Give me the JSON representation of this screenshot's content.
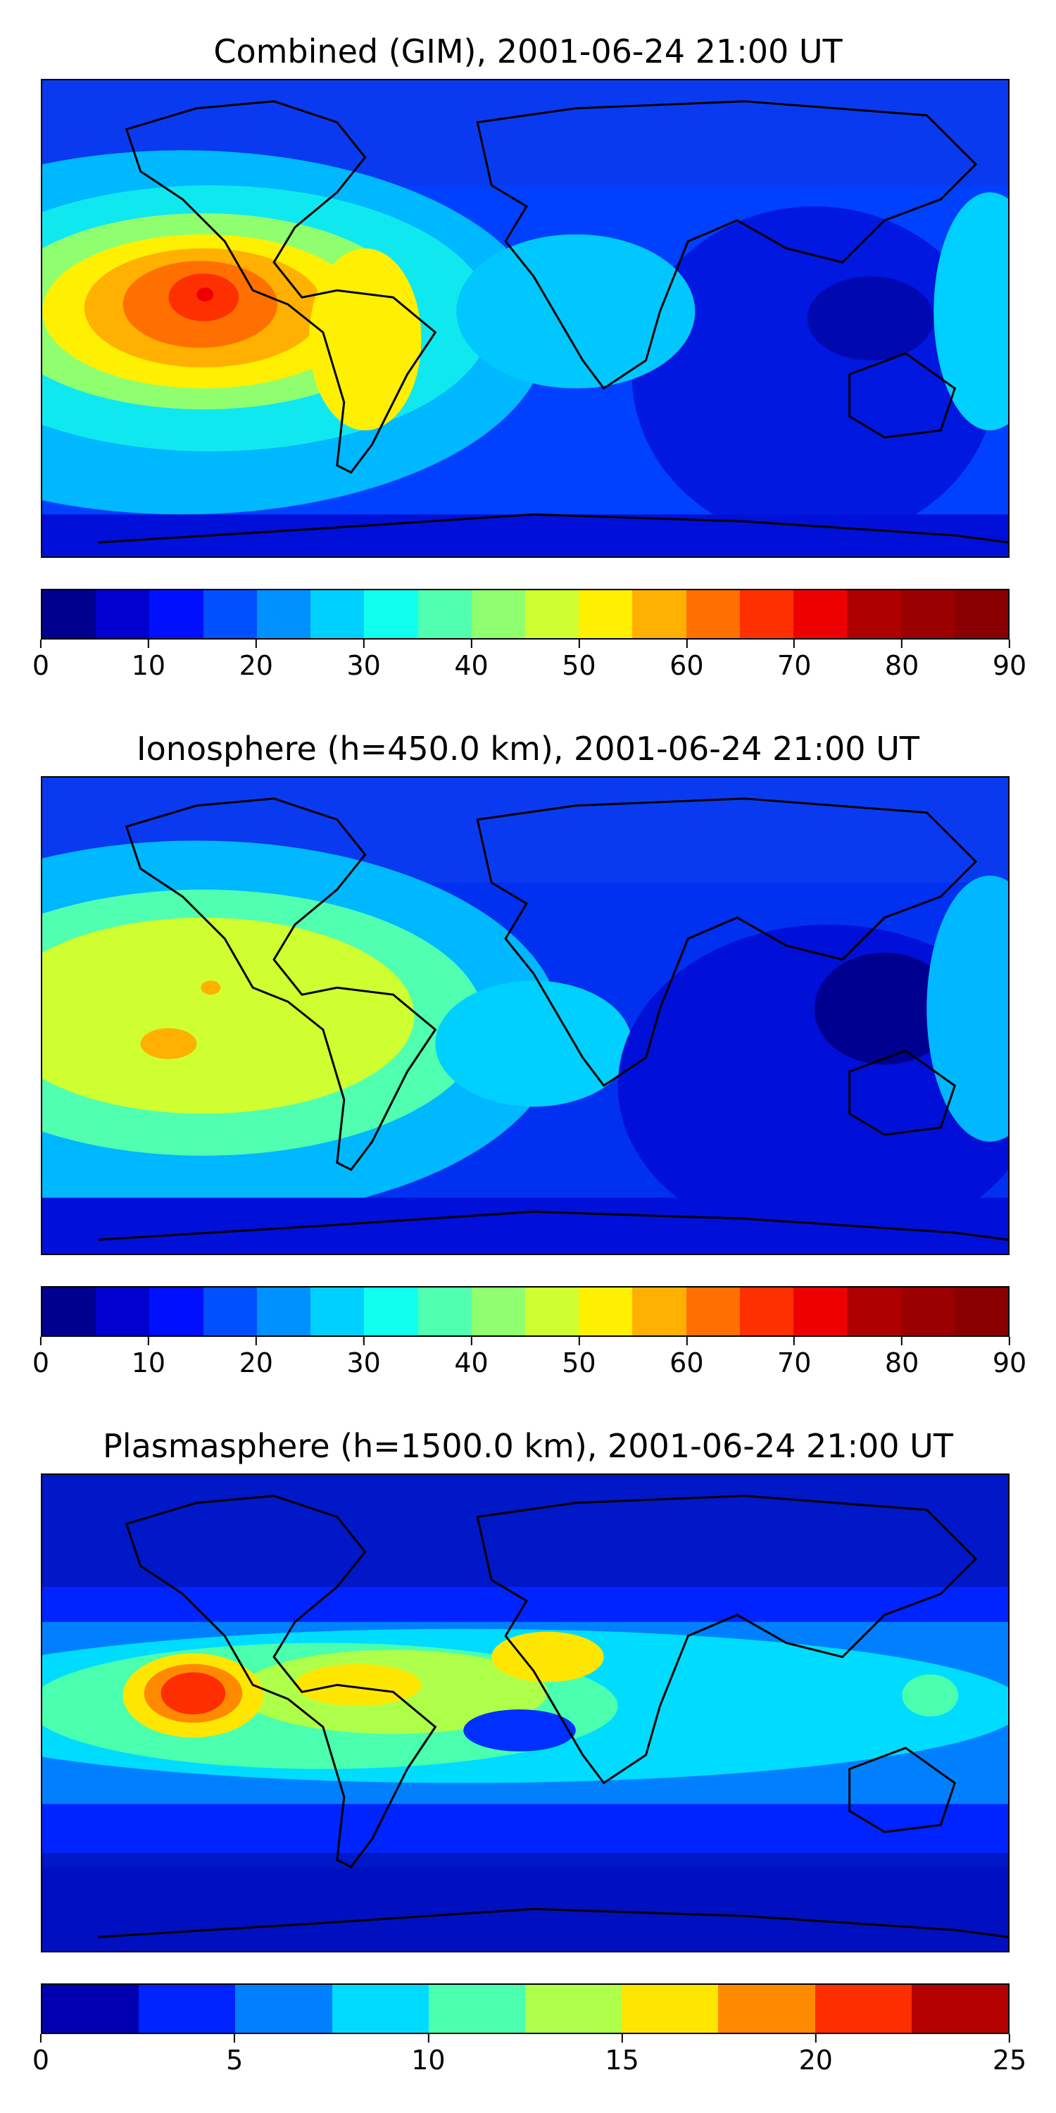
{
  "panels": [
    {
      "title": "Combined (GIM), 2001-06-24 21:00 UT",
      "colorbar_ticks": [
        "0",
        "10",
        "20",
        "30",
        "40",
        "50",
        "60",
        "70",
        "80",
        "90"
      ],
      "range": [
        0,
        90
      ],
      "levels": 18
    },
    {
      "title": "Ionosphere  (h=450.0 km), 2001-06-24 21:00 UT",
      "colorbar_ticks": [
        "0",
        "10",
        "20",
        "30",
        "40",
        "50",
        "60",
        "70",
        "80",
        "90"
      ],
      "range": [
        0,
        90
      ],
      "levels": 18
    },
    {
      "title": "Plasmasphere (h=1500.0 km), 2001-06-24 21:00 UT",
      "colorbar_ticks": [
        "0",
        "5",
        "10",
        "15",
        "20",
        "25"
      ],
      "range": [
        0,
        25
      ],
      "levels": 10
    }
  ],
  "colormap": "jet",
  "colors": {
    "jet18": [
      "#00008f",
      "#0000cf",
      "#0010ff",
      "#0050ff",
      "#0090ff",
      "#00d0ff",
      "#10ffef",
      "#50ffaf",
      "#90ff6f",
      "#cfff30",
      "#ffef00",
      "#ffb000",
      "#ff7000",
      "#ff3000",
      "#ef0000",
      "#af0000",
      "#9a0000",
      "#8a0000"
    ],
    "jet10": [
      "#0000b0",
      "#0024ff",
      "#0080ff",
      "#00dcff",
      "#4affad",
      "#adff4a",
      "#ffe600",
      "#ff8a00",
      "#ff2e00",
      "#b40000"
    ]
  }
}
